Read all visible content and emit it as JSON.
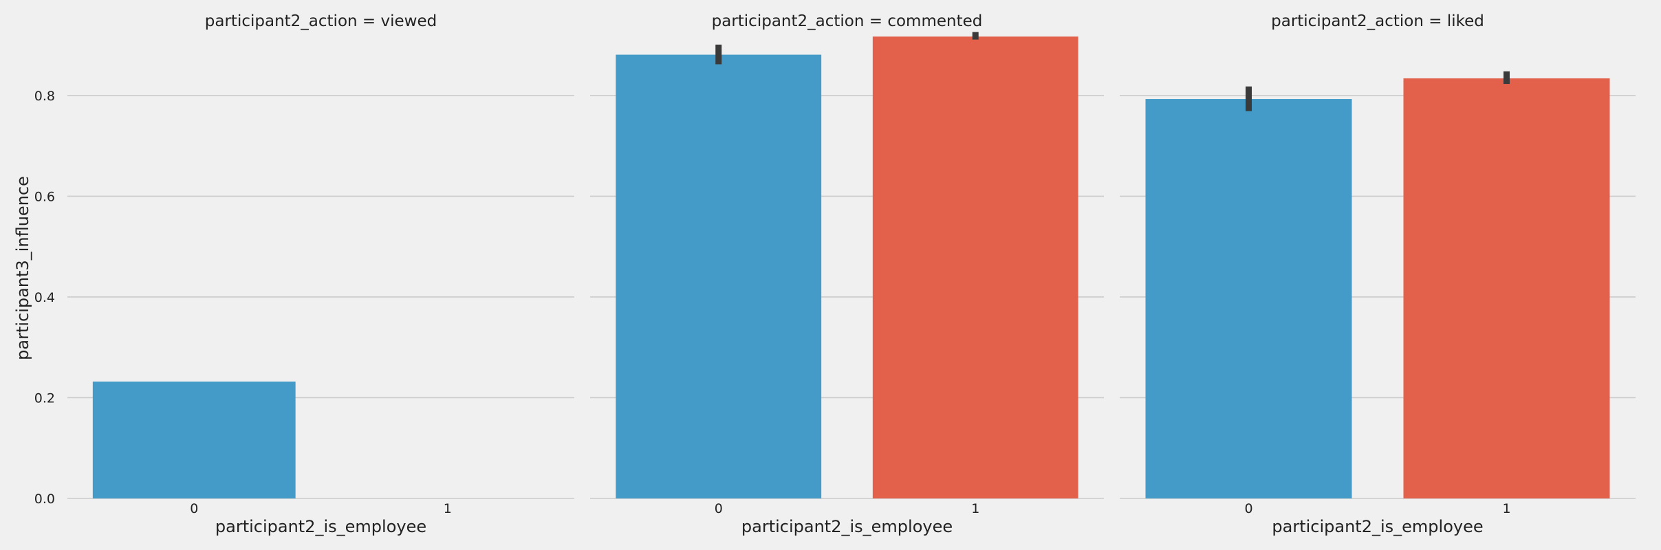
{
  "chart_data": {
    "type": "bar",
    "ylabel": "participant3_influence",
    "ylim": [
      0,
      0.935
    ],
    "yticks": [
      "0.0",
      "0.2",
      "0.4",
      "0.6",
      "0.8"
    ],
    "y_tick_values": [
      0,
      0.2,
      0.4,
      0.6,
      0.8
    ],
    "grid": "horizontal",
    "colors": {
      "0": "#449bc8",
      "1": "#e3614b",
      "error_bar": "#3a3a3a",
      "grid": "#cbcbcb",
      "background": "#f0f0f0"
    },
    "facets": [
      {
        "title": "participant2_action = viewed",
        "xlabel": "participant2_is_employee",
        "categories": [
          "0",
          "1"
        ],
        "values": [
          0.232,
          null
        ],
        "error_low": [
          null,
          null
        ],
        "error_high": [
          null,
          null
        ]
      },
      {
        "title": "participant2_action = commented",
        "xlabel": "participant2_is_employee",
        "categories": [
          "0",
          "1"
        ],
        "values": [
          0.881,
          0.917
        ],
        "error_low": [
          0.862,
          0.911
        ],
        "error_high": [
          0.901,
          0.926
        ]
      },
      {
        "title": "participant2_action = liked",
        "xlabel": "participant2_is_employee",
        "categories": [
          "0",
          "1"
        ],
        "values": [
          0.793,
          0.834
        ],
        "error_low": [
          0.769,
          0.823
        ],
        "error_high": [
          0.818,
          0.848
        ]
      }
    ]
  }
}
